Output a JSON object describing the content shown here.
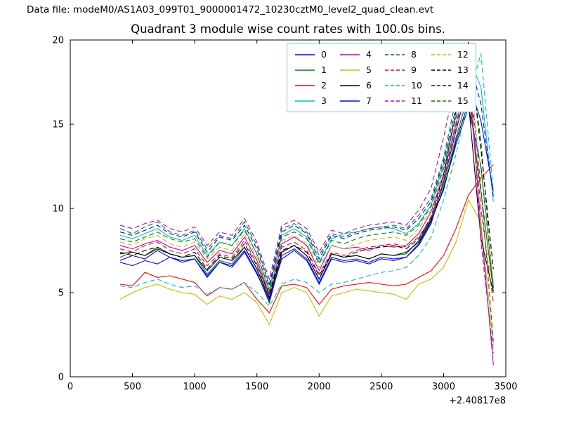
{
  "header": {
    "data_file_label": "Data file: modeM0/AS1A03_099T01_9000001472_10230cztM0_level2_quad_clean.evt"
  },
  "chart_data": {
    "type": "line",
    "title": "Quadrant 3 module wise count rates with 100.0s bins.",
    "xlabel": "",
    "ylabel": "",
    "xlim": [
      0,
      3500
    ],
    "ylim": [
      0,
      20
    ],
    "xticks": [
      0,
      500,
      1000,
      1500,
      2000,
      2500,
      3000,
      3500
    ],
    "yticks": [
      0,
      5,
      10,
      15,
      20
    ],
    "x_offset_label": "+2.40817e8",
    "grid": false,
    "legend_position": "upper center-right inside axes, 4 columns",
    "x": [
      400,
      500,
      600,
      700,
      800,
      900,
      1000,
      1100,
      1200,
      1300,
      1400,
      1500,
      1600,
      1700,
      1800,
      1900,
      2000,
      2100,
      2200,
      2300,
      2400,
      2500,
      2600,
      2700,
      2800,
      2900,
      3000,
      3100,
      3200,
      3300,
      3400
    ],
    "series": [
      {
        "name": "0",
        "color": "#0000ff",
        "dashed": false,
        "values": [
          6.9,
          7.2,
          7.0,
          7.5,
          7.1,
          6.9,
          7.0,
          6.0,
          6.8,
          6.6,
          7.5,
          6.2,
          4.4,
          7.2,
          7.6,
          7.0,
          5.6,
          7.1,
          6.9,
          7.0,
          6.8,
          7.1,
          7.0,
          7.1,
          7.9,
          9.2,
          11.2,
          13.8,
          16.0,
          12.5,
          5.3
        ]
      },
      {
        "name": "1",
        "color": "#008000",
        "dashed": false,
        "values": [
          7.1,
          7.4,
          7.2,
          7.7,
          7.3,
          7.1,
          7.2,
          6.1,
          6.9,
          6.7,
          7.7,
          6.4,
          4.5,
          7.4,
          7.8,
          7.2,
          5.8,
          7.3,
          7.1,
          7.2,
          7.0,
          7.3,
          7.2,
          7.3,
          8.1,
          9.4,
          11.4,
          14.2,
          16.8,
          11.0,
          5.1
        ]
      },
      {
        "name": "2",
        "color": "#ff0000",
        "dashed": false,
        "values": [
          5.5,
          5.4,
          6.2,
          5.9,
          6.0,
          5.8,
          5.6,
          4.8,
          5.3,
          5.2,
          5.6,
          4.6,
          3.8,
          5.4,
          5.5,
          5.3,
          4.3,
          5.2,
          5.4,
          5.5,
          5.6,
          5.5,
          5.4,
          5.5,
          5.9,
          6.3,
          7.2,
          8.8,
          10.8,
          11.8,
          12.6
        ]
      },
      {
        "name": "3",
        "color": "#00bfbf",
        "dashed": false,
        "values": [
          8.4,
          8.2,
          8.5,
          8.8,
          8.3,
          8.1,
          8.4,
          7.2,
          8.0,
          7.8,
          8.8,
          7.3,
          5.2,
          8.4,
          8.8,
          8.3,
          6.8,
          8.2,
          8.5,
          8.6,
          8.8,
          8.9,
          8.8,
          8.5,
          9.1,
          10.2,
          12.6,
          15.6,
          19.0,
          17.2,
          10.4
        ]
      },
      {
        "name": "4",
        "color": "#bf00bf",
        "dashed": false,
        "values": [
          7.8,
          7.6,
          7.9,
          8.1,
          7.7,
          7.5,
          7.8,
          6.8,
          7.5,
          7.3,
          8.3,
          6.9,
          4.9,
          7.9,
          8.3,
          7.8,
          6.3,
          7.8,
          7.6,
          7.7,
          7.5,
          7.8,
          7.7,
          7.8,
          8.5,
          9.8,
          12.0,
          15.0,
          18.0,
          9.0,
          0.7
        ]
      },
      {
        "name": "5",
        "color": "#bfbf00",
        "dashed": false,
        "values": [
          4.6,
          5.0,
          5.3,
          5.5,
          5.2,
          5.0,
          4.9,
          4.3,
          4.8,
          4.6,
          5.0,
          4.4,
          3.1,
          5.0,
          5.3,
          5.0,
          3.6,
          4.8,
          5.0,
          5.2,
          5.1,
          5.0,
          4.9,
          4.6,
          5.5,
          5.8,
          6.5,
          8.0,
          10.5,
          9.2,
          1.9
        ]
      },
      {
        "name": "6",
        "color": "#000000",
        "dashed": false,
        "values": [
          7.3,
          7.4,
          7.2,
          7.6,
          7.3,
          7.1,
          7.2,
          6.3,
          7.1,
          6.9,
          7.7,
          6.4,
          4.7,
          7.4,
          7.8,
          7.2,
          5.8,
          7.3,
          7.1,
          7.2,
          7.0,
          7.3,
          7.2,
          7.4,
          8.0,
          9.3,
          11.1,
          14.0,
          16.3,
          8.2,
          5.0
        ]
      },
      {
        "name": "7",
        "color": "#0000ff",
        "dashed": false,
        "values": [
          6.8,
          6.6,
          6.9,
          6.7,
          7.1,
          6.8,
          7.0,
          5.9,
          6.8,
          6.5,
          7.4,
          6.1,
          4.6,
          7.0,
          7.5,
          6.9,
          5.5,
          7.0,
          6.8,
          6.9,
          6.7,
          7.0,
          6.9,
          7.1,
          7.8,
          9.1,
          11.6,
          14.6,
          17.5,
          15.2,
          11.0
        ]
      },
      {
        "name": "8",
        "color": "#008000",
        "dashed": true,
        "values": [
          8.8,
          8.5,
          8.9,
          9.2,
          8.6,
          8.4,
          8.7,
          7.6,
          8.4,
          8.2,
          9.2,
          7.8,
          5.5,
          8.8,
          9.1,
          8.6,
          7.2,
          8.5,
          8.3,
          8.6,
          8.8,
          8.9,
          9.0,
          8.8,
          9.6,
          10.6,
          13.0,
          16.5,
          19.4,
          14.0,
          5.0
        ]
      },
      {
        "name": "9",
        "color": "#ff0000",
        "dashed": true,
        "values": [
          7.6,
          7.4,
          7.8,
          8.0,
          7.5,
          7.3,
          7.6,
          6.6,
          7.3,
          7.1,
          8.1,
          6.7,
          4.8,
          7.7,
          8.0,
          7.5,
          6.1,
          7.4,
          7.2,
          7.5,
          7.7,
          7.8,
          7.9,
          7.7,
          8.3,
          9.4,
          11.8,
          14.8,
          18.0,
          10.0,
          4.4
        ]
      },
      {
        "name": "10",
        "color": "#00bfbf",
        "dashed": true,
        "values": [
          5.4,
          5.3,
          5.6,
          5.8,
          5.5,
          5.3,
          5.4,
          4.9,
          5.3,
          5.2,
          5.6,
          5.0,
          4.2,
          5.5,
          5.8,
          5.6,
          5.0,
          5.5,
          5.6,
          5.8,
          6.0,
          6.2,
          6.3,
          6.5,
          7.2,
          8.3,
          10.5,
          13.2,
          16.5,
          19.2,
          11.0
        ]
      },
      {
        "name": "11",
        "color": "#bf00bf",
        "dashed": true,
        "values": [
          9.0,
          8.8,
          9.1,
          9.3,
          8.8,
          8.6,
          8.9,
          7.8,
          8.6,
          8.4,
          9.4,
          8.0,
          5.8,
          9.0,
          9.3,
          8.8,
          7.4,
          8.7,
          8.5,
          8.8,
          9.0,
          9.1,
          9.2,
          9.0,
          9.9,
          11.2,
          14.2,
          17.6,
          19.7,
          8.0,
          1.4
        ]
      },
      {
        "name": "12",
        "color": "#bfbf00",
        "dashed": true,
        "values": [
          8.0,
          7.8,
          8.2,
          8.4,
          7.9,
          7.7,
          8.0,
          7.0,
          7.7,
          7.5,
          8.5,
          7.1,
          5.0,
          8.1,
          8.4,
          7.9,
          6.5,
          7.8,
          7.6,
          7.9,
          8.1,
          8.2,
          8.3,
          8.1,
          8.8,
          9.9,
          12.2,
          15.2,
          18.5,
          12.2,
          5.6
        ]
      },
      {
        "name": "13",
        "color": "#000000",
        "dashed": true,
        "values": [
          7.4,
          7.2,
          7.5,
          7.7,
          7.3,
          7.1,
          7.4,
          6.4,
          7.2,
          7.0,
          7.9,
          6.6,
          4.9,
          7.5,
          7.8,
          7.4,
          6.0,
          7.3,
          7.1,
          7.4,
          7.6,
          7.7,
          7.8,
          7.6,
          8.2,
          9.5,
          12.0,
          15.8,
          19.9,
          13.5,
          6.4
        ]
      },
      {
        "name": "14",
        "color": "#0000ff",
        "dashed": true,
        "values": [
          8.6,
          8.4,
          8.7,
          9.0,
          8.5,
          8.3,
          8.6,
          7.4,
          8.3,
          8.1,
          9.0,
          7.6,
          5.4,
          8.6,
          9.0,
          8.5,
          7.0,
          8.4,
          8.2,
          8.5,
          8.7,
          8.8,
          8.9,
          8.7,
          9.4,
          10.4,
          12.8,
          16.0,
          19.0,
          16.2,
          10.7
        ]
      },
      {
        "name": "15",
        "color": "#008000",
        "dashed": true,
        "values": [
          8.2,
          8.0,
          8.3,
          8.6,
          8.2,
          8.0,
          8.2,
          7.1,
          8.0,
          7.8,
          8.7,
          7.3,
          5.1,
          8.3,
          8.6,
          8.2,
          6.7,
          8.1,
          7.9,
          8.2,
          8.4,
          8.5,
          8.6,
          8.4,
          9.0,
          10.1,
          12.4,
          15.4,
          18.8,
          11.2,
          2.1
        ]
      }
    ]
  }
}
